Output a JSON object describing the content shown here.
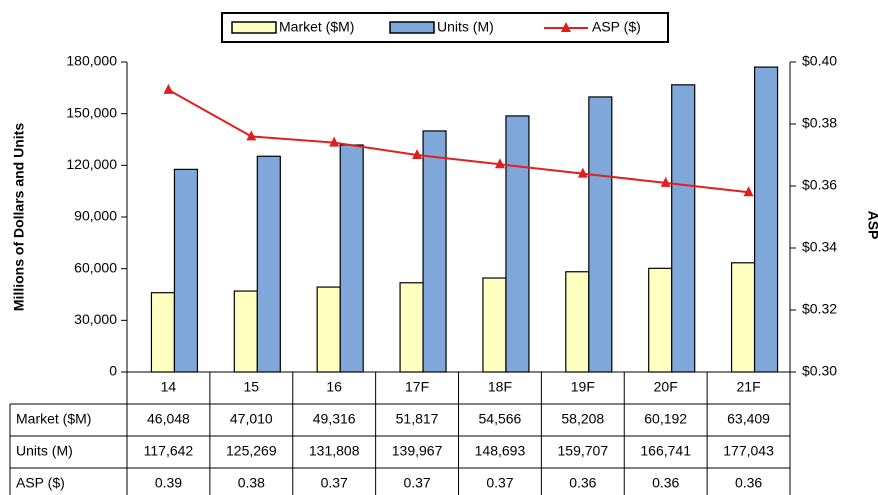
{
  "chart_data": {
    "type": "bar",
    "categories": [
      "14",
      "15",
      "16",
      "17F",
      "18F",
      "19F",
      "20F",
      "21F"
    ],
    "y_axis_label": "Millions of Dollars and Units",
    "y2_axis_label": "ASP",
    "ylim": [
      0,
      180000
    ],
    "yticks": [
      0,
      {
        "value": 30000,
        "label": "30,000"
      },
      {
        "value": 60000,
        "label": "60,000"
      },
      {
        "value": 90000,
        "label": "90,000"
      },
      {
        "value": 120000,
        "label": "120,000"
      },
      {
        "value": 150000,
        "label": "150,000"
      },
      {
        "value": 180000,
        "label": "180,000"
      }
    ],
    "y2lim": [
      0.3,
      0.4
    ],
    "y2ticks": [
      {
        "value": 0.3,
        "label": "$0.30"
      },
      {
        "value": 0.32,
        "label": "$0.32"
      },
      {
        "value": 0.34,
        "label": "$0.34"
      },
      {
        "value": 0.36,
        "label": "$0.36"
      },
      {
        "value": 0.38,
        "label": "$0.38"
      },
      {
        "value": 0.4,
        "label": "$0.40"
      }
    ],
    "legend": "top",
    "series": [
      {
        "name": "Market ($M)",
        "type": "bar",
        "color": "#ffffc0",
        "values": [
          46048,
          47010,
          49316,
          51817,
          54566,
          58208,
          60192,
          63409
        ],
        "value_labels": [
          "46,048",
          "47,010",
          "49,316",
          "51,817",
          "54,566",
          "58,208",
          "60,192",
          "63,409"
        ]
      },
      {
        "name": "Units (M)",
        "type": "bar",
        "color": "#7fa7d9",
        "values": [
          117642,
          125269,
          131808,
          139967,
          148693,
          159707,
          166741,
          177043
        ],
        "value_labels": [
          "117,642",
          "125,269",
          "131,808",
          "139,967",
          "148,693",
          "159,707",
          "166,741",
          "177,043"
        ]
      },
      {
        "name": "ASP ($)",
        "type": "line",
        "axis": "y2",
        "color": "#e02020",
        "values": [
          0.391,
          0.376,
          0.374,
          0.37,
          0.367,
          0.364,
          0.361,
          0.358
        ],
        "value_labels": [
          "0.39",
          "0.38",
          "0.37",
          "0.37",
          "0.37",
          "0.36",
          "0.36",
          "0.36"
        ]
      }
    ]
  }
}
